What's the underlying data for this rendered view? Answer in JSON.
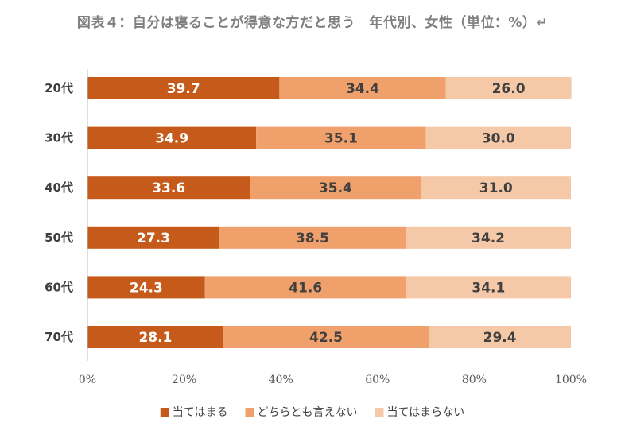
{
  "chart_data": {
    "type": "bar",
    "orientation": "horizontal",
    "stacked": "percent",
    "title": "図表４：自分は寝ることが得意な方だと思う　年代別、女性（単位：%）↵",
    "categories": [
      "20代",
      "30代",
      "40代",
      "50代",
      "60代",
      "70代"
    ],
    "series": [
      {
        "name": "当てはまる",
        "color": "#c55a1b",
        "label_color": "#ffffff",
        "values": [
          39.7,
          34.9,
          33.6,
          27.3,
          24.3,
          28.1
        ]
      },
      {
        "name": "どちらとも言えない",
        "color": "#f0a06b",
        "label_color": "#404040",
        "values": [
          34.4,
          35.1,
          35.4,
          38.5,
          41.6,
          42.5
        ]
      },
      {
        "name": "当てはまらない",
        "color": "#f5c9a8",
        "label_color": "#404040",
        "values": [
          26.0,
          30.0,
          31.0,
          34.2,
          34.1,
          29.4
        ]
      }
    ],
    "xlim": [
      0,
      100
    ],
    "xticks": [
      "0%",
      "20%",
      "40%",
      "60%",
      "80%",
      "100%"
    ],
    "grid": false,
    "legend_position": "bottom"
  }
}
